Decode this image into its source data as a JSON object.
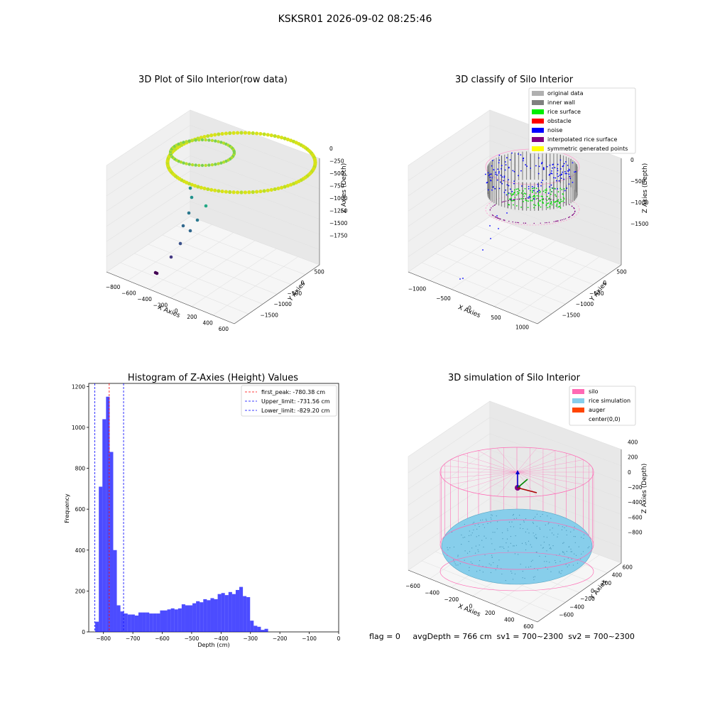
{
  "suptitle": "KSKSR01 2026-09-02 08:25:46",
  "panel1": {
    "title": "3D Plot of Silo Interior(row data)",
    "xlabel": "X Axies",
    "ylabel": "Y Axies",
    "zlabel": "Z Axies (Depth)",
    "xticks": [
      "−800",
      "−600",
      "−400",
      "−200",
      "0",
      "200",
      "400",
      "600"
    ],
    "yticks": [
      "500",
      "0",
      "−500",
      "−1000",
      "−1500"
    ],
    "zticks": [
      "0",
      "−250",
      "−500",
      "−750",
      "−1000",
      "−1250",
      "−1500",
      "−1750"
    ]
  },
  "panel2": {
    "title": "3D classify of Silo Interior",
    "xlabel": "X Axies",
    "ylabel": "Y Axies",
    "zlabel": "Z Axies (Depth)",
    "xticks": [
      "−1000",
      "−500",
      "0",
      "500",
      "1000"
    ],
    "yticks": [
      "500",
      "0",
      "−500",
      "−1000",
      "−1500"
    ],
    "zticks": [
      "0",
      "−500",
      "−1000",
      "−1500"
    ],
    "legend": [
      {
        "label": "original data",
        "color": "#b0b0b0"
      },
      {
        "label": "inner wall",
        "color": "#808080"
      },
      {
        "label": "rice surface",
        "color": "#00ee00"
      },
      {
        "label": "obstacle",
        "color": "#ff0000"
      },
      {
        "label": "noise",
        "color": "#0000ff"
      },
      {
        "label": "interpolated rice surface",
        "color": "#800080"
      },
      {
        "label": "symmetric generated points",
        "color": "#ffff00"
      }
    ]
  },
  "panel3": {
    "title": "Histogram of Z-Axies (Height) Values",
    "xlabel": "Depth (cm)",
    "ylabel": "Frequency",
    "xticks": [
      "−800",
      "−700",
      "−600",
      "−500",
      "−400",
      "−300",
      "−200",
      "−100",
      "0"
    ],
    "yticks": [
      "0",
      "200",
      "400",
      "600",
      "800",
      "1000",
      "1200"
    ],
    "legend": [
      {
        "label": "first_peak: -780.38 cm",
        "color": "#ff0000"
      },
      {
        "label": "Upper_limit: -731.56 cm",
        "color": "#0000ff"
      },
      {
        "label": "Lower_limit: -829.20 cm",
        "color": "#0000ff"
      }
    ]
  },
  "panel4": {
    "title": "3D simulation of Silo Interior",
    "xlabel": "X Axies",
    "ylabel": "Y Axies",
    "zlabel": "Z Axies (Depth)",
    "xticks": [
      "−600",
      "−400",
      "−200",
      "0",
      "200",
      "400",
      "600"
    ],
    "yticks": [
      "600",
      "400",
      "200",
      "0",
      "−200",
      "−400",
      "−600"
    ],
    "zticks": [
      "400",
      "200",
      "0",
      "−200",
      "−400",
      "−600",
      "−800"
    ],
    "legend": [
      {
        "label": "silo",
        "color": "#ff69b4"
      },
      {
        "label": "rice simulation",
        "color": "#87ceeb"
      },
      {
        "label": "auger",
        "color": "#ff4500"
      },
      {
        "label": "center(0,0)",
        "color": ""
      }
    ]
  },
  "footer": "flag = 0     avgDepth = 766 cm  sv1 = 700~2300  sv2 = 700~2300",
  "chart_data": [
    {
      "type": "scatter",
      "title": "3D Plot of Silo Interior(row data)",
      "xlabel": "X Axies",
      "ylabel": "Y Axies",
      "zlabel": "Z Axies (Depth)",
      "xlim": [
        -800,
        600
      ],
      "ylim": [
        -1600,
        600
      ],
      "zlim": [
        -1750,
        0
      ],
      "colormap": "viridis"
    },
    {
      "type": "scatter",
      "title": "3D classify of Silo Interior",
      "xlabel": "X Axies",
      "ylabel": "Y Axies",
      "zlabel": "Z Axies (Depth)",
      "xlim": [
        -1000,
        1000
      ],
      "ylim": [
        -1600,
        600
      ],
      "zlim": [
        -1750,
        0
      ],
      "series": [
        {
          "name": "original data"
        },
        {
          "name": "inner wall"
        },
        {
          "name": "rice surface"
        },
        {
          "name": "obstacle"
        },
        {
          "name": "noise"
        },
        {
          "name": "interpolated rice surface"
        },
        {
          "name": "symmetric generated points"
        }
      ]
    },
    {
      "type": "bar",
      "title": "Histogram of Z-Axies (Height) Values",
      "xlabel": "Depth (cm)",
      "ylabel": "Frequency",
      "xlim": [
        -850,
        0
      ],
      "ylim": [
        0,
        1200
      ],
      "bin_width": 12.25,
      "bin_start": -828,
      "values": [
        50,
        710,
        1040,
        1150,
        880,
        400,
        130,
        100,
        90,
        85,
        85,
        80,
        95,
        95,
        95,
        90,
        90,
        90,
        105,
        105,
        110,
        115,
        110,
        115,
        135,
        130,
        130,
        140,
        150,
        145,
        160,
        155,
        165,
        160,
        185,
        190,
        180,
        195,
        185,
        205,
        220,
        175,
        170,
        55,
        30,
        25,
        10,
        15
      ],
      "first_peak": -780.38,
      "upper_limit": -731.56,
      "lower_limit": -829.2,
      "color": "#0000ff"
    },
    {
      "type": "scatter",
      "title": "3D simulation of Silo Interior",
      "xlabel": "X Axies",
      "ylabel": "Y Axies",
      "zlabel": "Z Axies (Depth)",
      "xlim": [
        -700,
        700
      ],
      "ylim": [
        -700,
        700
      ],
      "zlim": [
        -900,
        450
      ],
      "series": [
        {
          "name": "silo"
        },
        {
          "name": "rice simulation"
        },
        {
          "name": "auger"
        },
        {
          "name": "center(0,0)"
        }
      ]
    }
  ]
}
